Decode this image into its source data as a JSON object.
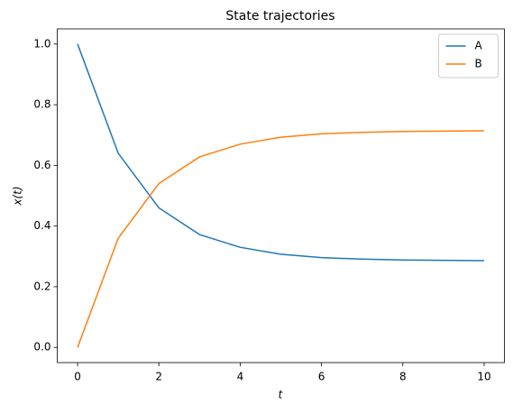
{
  "chart_data": {
    "type": "line",
    "title": "State trajectories",
    "xlabel": "t",
    "ylabel": "x(t)",
    "x": [
      0,
      1,
      2,
      3,
      4,
      5,
      6,
      7,
      8,
      9,
      10
    ],
    "series": [
      {
        "name": "A",
        "color": "#1f77b4",
        "values": [
          1.0,
          0.64,
          0.46,
          0.372,
          0.33,
          0.307,
          0.296,
          0.291,
          0.288,
          0.287,
          0.286
        ]
      },
      {
        "name": "B",
        "color": "#ff7f0e",
        "values": [
          0.0,
          0.36,
          0.54,
          0.628,
          0.67,
          0.693,
          0.704,
          0.709,
          0.712,
          0.713,
          0.714
        ]
      }
    ],
    "xlim": [
      -0.5,
      10.5
    ],
    "ylim": [
      -0.05,
      1.05
    ],
    "xticks": [
      0,
      2,
      4,
      6,
      8,
      10
    ],
    "yticks": [
      {
        "value": 0,
        "label": "0.0"
      },
      {
        "value": 0.2,
        "label": "0.2"
      },
      {
        "value": 0.4,
        "label": "0.4"
      },
      {
        "value": 0.6,
        "label": "0.6"
      },
      {
        "value": 0.8,
        "label": "0.8"
      },
      {
        "value": 1,
        "label": "1.0"
      }
    ],
    "legend": "upper right"
  }
}
